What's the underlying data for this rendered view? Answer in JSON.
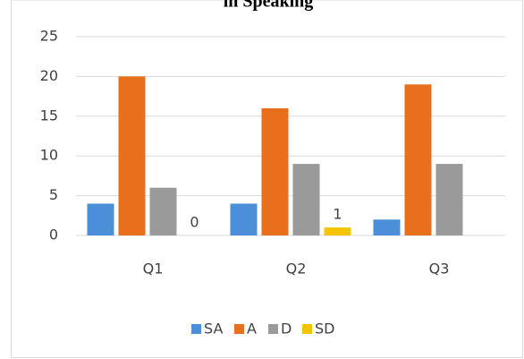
{
  "chart_data": {
    "type": "bar",
    "title": "in Speaking",
    "categories": [
      "Q1",
      "Q2",
      "Q3"
    ],
    "series": [
      {
        "name": "SA",
        "color": "#4a8fd8",
        "values": [
          4,
          4,
          2
        ]
      },
      {
        "name": "A",
        "color": "#e8701c",
        "values": [
          20,
          16,
          19
        ]
      },
      {
        "name": "D",
        "color": "#9a9a9a",
        "values": [
          6,
          9,
          9
        ]
      },
      {
        "name": "SD",
        "color": "#f5c400",
        "values": [
          0,
          1,
          null
        ],
        "data_labels": true
      }
    ],
    "ylim": [
      0,
      25
    ],
    "yticks": [
      0,
      5,
      10,
      15,
      20,
      25
    ],
    "grid": true,
    "legend": "bottom"
  }
}
